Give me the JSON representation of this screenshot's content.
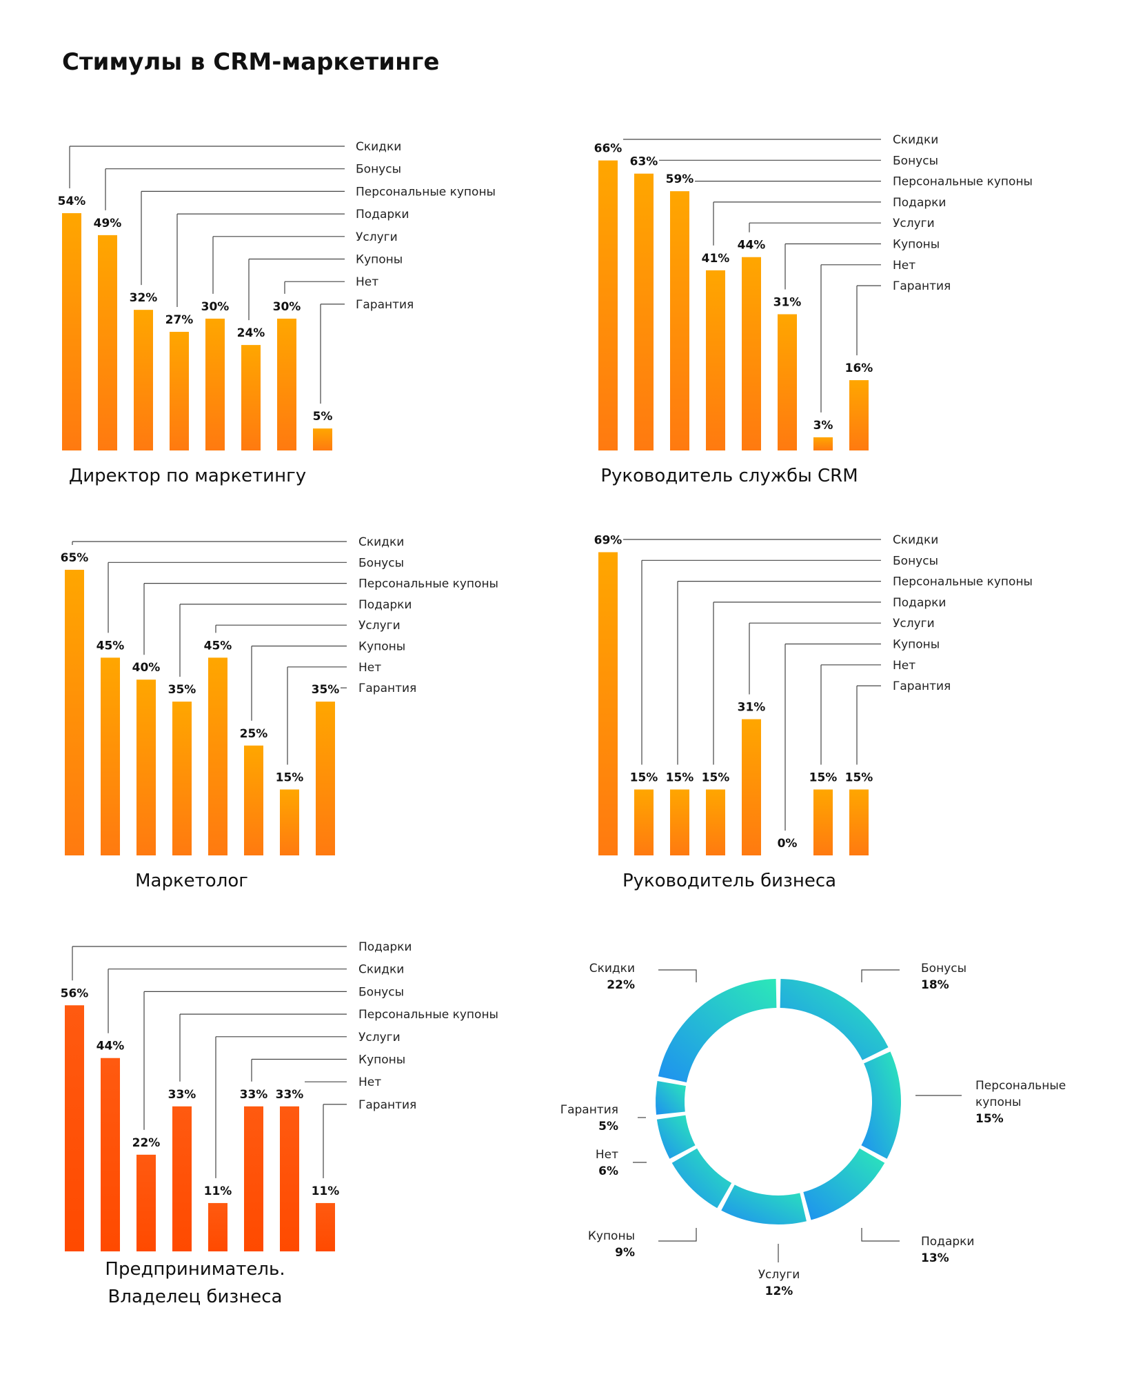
{
  "title": "Стимулы в CRM-маркетинге",
  "colors": {
    "bar_top": "#FFA600",
    "bar_bottom": "#FF7A10",
    "bar_red_top": "#FF5A10",
    "bar_red_bottom": "#FF4A00",
    "donut_a": "#2CE8B8",
    "donut_b": "#1E90F0",
    "leader": "#444444"
  },
  "chart_data": [
    {
      "type": "bar",
      "title": "Директор по маркетингу",
      "categories": [
        "Скидки",
        "Бонусы",
        "Персональные купоны",
        "Подарки",
        "Услуги",
        "Купоны",
        "Нет",
        "Гарантия"
      ],
      "values": [
        54,
        49,
        32,
        27,
        30,
        24,
        30,
        5
      ],
      "value_labels": [
        "54%",
        "49%",
        "32%",
        "27%",
        "30%",
        "24%",
        "30%",
        "5%"
      ]
    },
    {
      "type": "bar",
      "title": "Руководитель службы CRM",
      "categories": [
        "Скидки",
        "Бонусы",
        "Персональные купоны",
        "Подарки",
        "Услуги",
        "Купоны",
        "Нет",
        "Гарантия"
      ],
      "values": [
        66,
        63,
        59,
        41,
        44,
        31,
        3,
        16
      ],
      "value_labels": [
        "66%",
        "63%",
        "59%",
        "41%",
        "44%",
        "31%",
        "3%",
        "16%"
      ]
    },
    {
      "type": "bar",
      "title": "Маркетолог",
      "categories": [
        "Скидки",
        "Бонусы",
        "Персональные купоны",
        "Подарки",
        "Услуги",
        "Купоны",
        "Нет",
        "Гарантия"
      ],
      "values": [
        65,
        45,
        40,
        35,
        45,
        25,
        15,
        35
      ],
      "value_labels": [
        "65%",
        "45%",
        "40%",
        "35%",
        "45%",
        "25%",
        "15%",
        "35%"
      ]
    },
    {
      "type": "bar",
      "title": "Руководитель бизнеса",
      "categories": [
        "Скидки",
        "Бонусы",
        "Персональные купоны",
        "Подарки",
        "Услуги",
        "Купоны",
        "Нет",
        "Гарантия"
      ],
      "values": [
        69,
        15,
        15,
        15,
        31,
        0,
        15,
        15
      ],
      "value_labels": [
        "69%",
        "15%",
        "15%",
        "15%",
        "31%",
        "0%",
        "15%",
        "15%"
      ]
    },
    {
      "type": "bar",
      "title": "Предприниматель.\nВладелец бизнеса",
      "categories": [
        "Подарки",
        "Скидки",
        "Бонусы",
        "Персональные купоны",
        "Услуги",
        "Купоны",
        "Нет",
        "Гарантия"
      ],
      "values": [
        56,
        44,
        22,
        33,
        11,
        33,
        33,
        11
      ],
      "value_labels": [
        "56%",
        "44%",
        "22%",
        "33%",
        "11%",
        "33%",
        "33%",
        "11%"
      ]
    },
    {
      "type": "pie",
      "categories": [
        "Бонусы",
        "Персональные купоны",
        "Подарки",
        "Услуги",
        "Купоны",
        "Нет",
        "Гарантия",
        "Скидки"
      ],
      "values": [
        18,
        15,
        13,
        12,
        9,
        6,
        5,
        22
      ],
      "value_labels": [
        "18%",
        "15%",
        "13%",
        "12%",
        "9%",
        "6%",
        "5%",
        "22%"
      ],
      "display_names": [
        "Бонусы",
        "Персональные\nкупоны",
        "Подарки",
        "Услуги",
        "Купоны",
        "Нет",
        "Гарантия",
        "Скидки"
      ]
    }
  ]
}
